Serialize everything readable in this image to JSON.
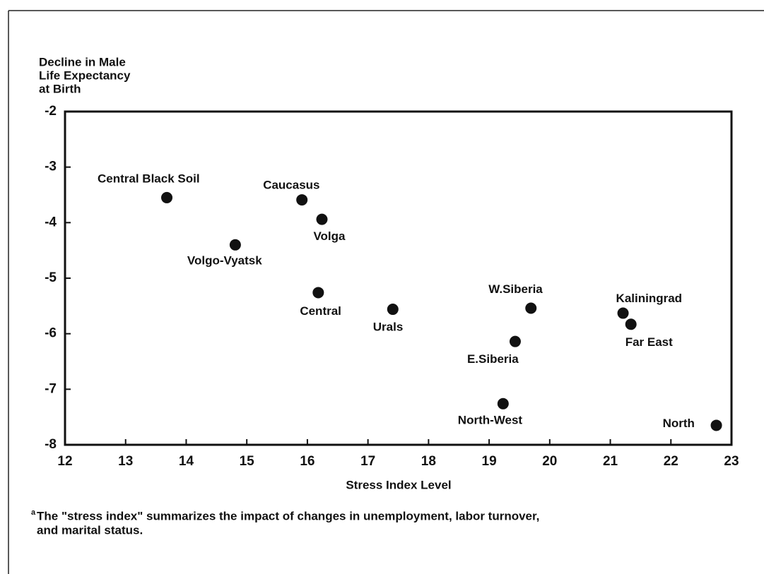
{
  "chart_data": {
    "type": "scatter",
    "y_label": [
      "Decline in Male",
      "Life Expectancy",
      "at Birth"
    ],
    "x_label": "Stress Index Level",
    "footnote_marker": "a",
    "footnote": [
      "The \"stress index\" summarizes the impact of changes in unemployment, labor turnover,",
      "and marital status."
    ],
    "color": "#111111",
    "series": [
      {
        "name": null,
        "color": "#111111",
        "labels": [
          "Central Black Soil",
          "Caucasus",
          "Volga",
          "Volgo-Vyatsk",
          "Central",
          "Urals",
          "W.Siberia",
          "E.Siberia",
          "North-West",
          "Kaliningrad",
          "Far East",
          "North"
        ],
        "x": [
          13.68,
          15.91,
          16.24,
          14.81,
          16.18,
          17.41,
          19.69,
          19.43,
          19.23,
          21.21,
          21.34,
          22.75
        ],
        "values": [
          -3.55,
          -3.59,
          -3.94,
          -4.4,
          -5.26,
          -5.56,
          -5.54,
          -6.14,
          -7.26,
          -5.63,
          -5.83,
          -7.65
        ]
      }
    ],
    "xlim": [
      12,
      23
    ],
    "xticks": [
      12,
      13,
      14,
      15,
      16,
      17,
      18,
      19,
      20,
      21,
      22,
      23
    ],
    "ylim": [
      -8,
      -2
    ],
    "yticks": [
      -2,
      -3,
      -4,
      -5,
      -6,
      -7,
      -8
    ]
  }
}
